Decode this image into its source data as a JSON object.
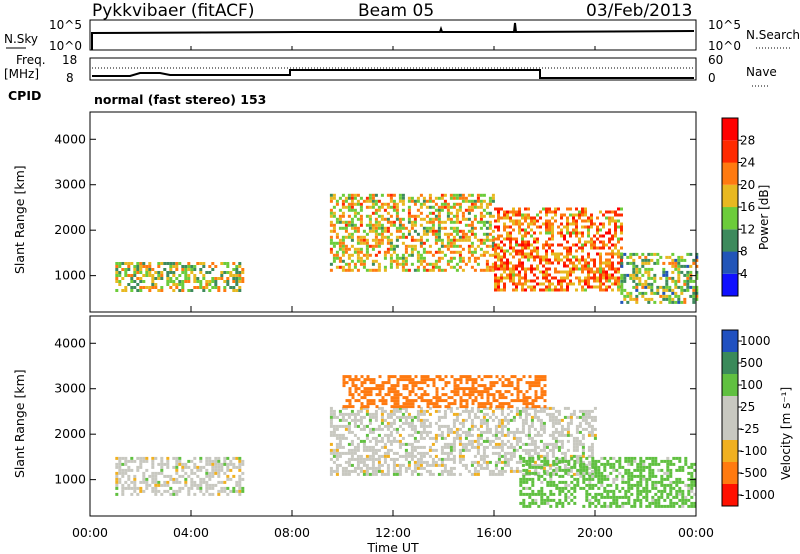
{
  "header": {
    "station": "Pykkvibaer (fitACF)",
    "beam": "Beam 05",
    "date": "03/Feb/2013"
  },
  "top_panels": {
    "nsky_label": "N.Sky",
    "nsky_ticks": [
      "10^5",
      "10^0"
    ],
    "nsearch_label": "N.Search",
    "nsearch_ticks": [
      "10^5",
      "10^0"
    ],
    "freq_label": "Freq.",
    "freq_unit": "[MHz]",
    "freq_ticks": [
      "18",
      "8"
    ],
    "nave_label": "Nave",
    "nave_ticks": [
      "60",
      "0"
    ],
    "cpid_label": "CPID",
    "cpid_value": "normal (fast stereo) 153"
  },
  "chart_data": [
    {
      "type": "heatmap",
      "name": "power-panel",
      "ylabel": "Slant Range [km]",
      "y_ticks": [
        "1000",
        "2000",
        "3000",
        "4000"
      ],
      "ylim": [
        200,
        4600
      ],
      "xlim_hours": [
        0,
        24
      ],
      "colorbar_label": "Power [dB]",
      "colorbar_ticks": [
        "4",
        "8",
        "12",
        "16",
        "20",
        "24",
        "28"
      ],
      "colorbar_colors": [
        "#1010ff",
        "#2255b8",
        "#3d8a5c",
        "#6ccc3a",
        "#e8b820",
        "#ff7a10",
        "#ff2a00",
        "#ff0000"
      ],
      "regions": [
        {
          "t0": 1.0,
          "t1": 6.0,
          "r0": 700,
          "r1": 1300,
          "value": 16
        },
        {
          "t0": 9.5,
          "t1": 16.0,
          "r0": 1100,
          "r1": 2800,
          "value": 18
        },
        {
          "t0": 16.0,
          "t1": 21.0,
          "r0": 700,
          "r1": 2500,
          "value": 22
        },
        {
          "t0": 21.0,
          "t1": 24.0,
          "r0": 400,
          "r1": 1500,
          "value": 14
        }
      ]
    },
    {
      "type": "heatmap",
      "name": "velocity-panel",
      "ylabel": "Slant Range [km]",
      "y_ticks": [
        "1000",
        "2000",
        "3000",
        "4000"
      ],
      "ylim": [
        200,
        4600
      ],
      "xlim_hours": [
        0,
        24
      ],
      "colorbar_label": "Velocity [m s⁻¹]",
      "colorbar_ticks": [
        "1000",
        "500",
        "100",
        "25",
        "-25",
        "-100",
        "-500",
        "-1000"
      ],
      "colorbar_colors": [
        "#2050c0",
        "#3a8a5a",
        "#60c040",
        "#c8c8c0",
        "#c8c8c0",
        "#f0b020",
        "#ff7a10",
        "#ff1000"
      ],
      "regions": [
        {
          "t0": 1.0,
          "t1": 6.0,
          "r0": 700,
          "r1": 1500,
          "value": 0
        },
        {
          "t0": 9.5,
          "t1": 20.0,
          "r0": 1100,
          "r1": 2600,
          "value": 0
        },
        {
          "t0": 10.0,
          "t1": 18.0,
          "r0": 2600,
          "r1": 3300,
          "value": -300
        },
        {
          "t0": 17.0,
          "t1": 24.0,
          "r0": 400,
          "r1": 1500,
          "value": 50
        }
      ]
    }
  ],
  "x_axis": {
    "ticks": [
      "00:00",
      "04:00",
      "08:00",
      "12:00",
      "16:00",
      "20:00",
      "00:00"
    ],
    "label": "Time UT"
  }
}
